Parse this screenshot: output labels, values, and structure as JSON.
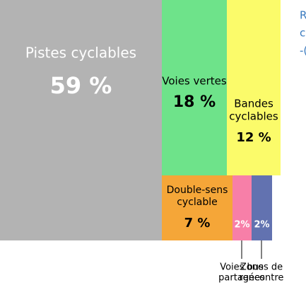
{
  "chart_data": {
    "type": "treemap",
    "labels": [
      [
        "Pistes cyclables"
      ],
      [
        "Voies vertes"
      ],
      [
        "Bandes",
        "cyclables"
      ],
      [
        "Double-sens",
        "cyclable"
      ],
      [
        "Voies bus",
        "partagées"
      ],
      [
        "Zones de",
        "rencontre"
      ]
    ],
    "values": [
      59,
      18,
      12,
      7,
      2,
      2
    ],
    "value_labels": [
      "59 %",
      "18 %",
      "12 %",
      "7 %",
      "2%",
      "2%"
    ],
    "colors": [
      "#b3b3b3",
      "#6ee38a",
      "#fbfb6a",
      "#f5a638",
      "#f77fa8",
      "#6272b0"
    ],
    "note": [
      "R",
      "c",
      "-("
    ]
  }
}
